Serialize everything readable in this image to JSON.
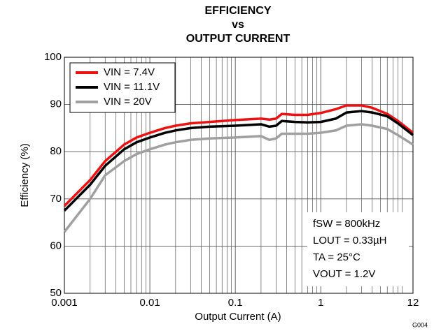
{
  "chart_data": {
    "type": "line",
    "title": [
      "EFFICIENCY",
      "vs",
      "OUTPUT CURRENT"
    ],
    "x_label": "Output Current (A)",
    "y_label": "Efficiency (%)",
    "x_scale": "log",
    "grid": true,
    "legend": "upper left",
    "x": [
      0.001,
      0.002,
      0.003,
      0.005,
      0.007,
      0.01,
      0.015,
      0.02,
      0.03,
      0.05,
      0.1,
      0.2,
      0.25,
      0.3,
      0.35,
      0.5,
      0.7,
      1,
      1.5,
      2,
      3,
      4,
      6,
      8,
      12
    ],
    "series": [
      {
        "name": "VIN = 7.4V",
        "color": "#ee1111",
        "values": [
          68.5,
          74,
          78,
          81.5,
          83,
          84,
          85,
          85.5,
          86,
          86.3,
          86.7,
          87,
          86.8,
          87,
          88,
          87.8,
          87.8,
          88.2,
          89,
          89.8,
          89.8,
          89.3,
          88,
          86.5,
          84
        ]
      },
      {
        "name": "VIN = 11.1V",
        "color": "#000000",
        "values": [
          67.5,
          73,
          77,
          80.5,
          82,
          83,
          84,
          84.5,
          85,
          85.3,
          85.5,
          85.8,
          85.3,
          85.5,
          86.5,
          86.3,
          86.2,
          86.3,
          87,
          88.3,
          88.6,
          88.3,
          87.5,
          86,
          83.5
        ]
      },
      {
        "name": "VIN = 20V",
        "color": "#a0a0a0",
        "values": [
          63,
          70,
          75,
          78,
          79.5,
          80.5,
          81.5,
          82,
          82.5,
          82.8,
          83,
          83.3,
          82.5,
          82.8,
          83.8,
          83.8,
          83.8,
          84,
          84.5,
          85.5,
          85.8,
          85.5,
          84.8,
          83.5,
          81.5
        ]
      }
    ],
    "xlim": [
      0.001,
      12
    ],
    "ylim": [
      50,
      100
    ],
    "xticks": [
      0.001,
      0.01,
      0.1,
      1,
      12
    ],
    "yticks": [
      50,
      60,
      70,
      80,
      90,
      100
    ],
    "annotations": [
      "fSW = 800kHz",
      "LOUT = 0.33µH",
      "TA = 25°C",
      "VOUT = 1.2V"
    ],
    "figure_id": "G004"
  }
}
